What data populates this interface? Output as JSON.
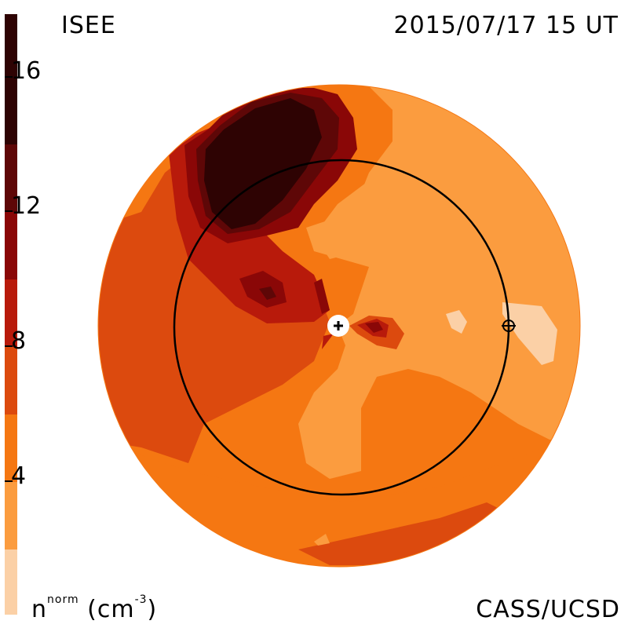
{
  "title_left": "ISEE",
  "title_right": "2015/07/17 15 UT",
  "credit": "CASS/UCSD",
  "colorbar": {
    "quantity": "n",
    "superscript_label": "norm",
    "unit_open": "(cm",
    "unit_exp": "-3",
    "unit_close": ")",
    "ticks": [
      "4",
      "8",
      "12",
      "16"
    ],
    "levels": [
      {
        "color": "#fbd0a6"
      },
      {
        "color": "#fb9c3f"
      },
      {
        "color": "#f57712"
      },
      {
        "color": "#dc4a0e"
      },
      {
        "color": "#b81a0b"
      },
      {
        "color": "#8a0707"
      },
      {
        "color": "#5e0707"
      },
      {
        "color": "#2e0303"
      }
    ]
  },
  "map": {
    "center_symbol": "sun-marker",
    "earth_symbol": "earth-marker",
    "orbit": "earth-orbit-circle"
  }
}
